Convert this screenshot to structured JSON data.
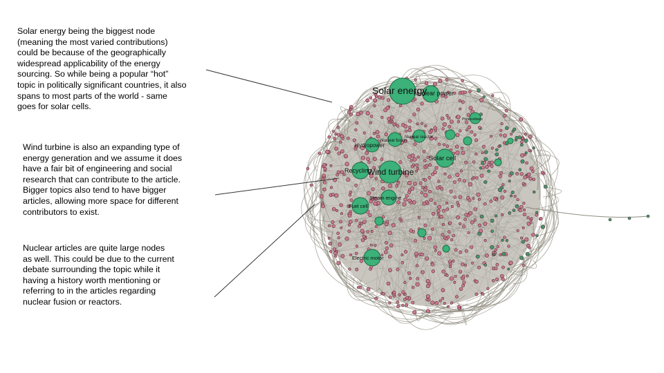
{
  "annotations": {
    "solar": "Solar energy being the biggest node\n(meaning the most varied contributions)\ncould be because of the geographically\nwidespread applicability of the energy\nsourcing. So while being a popular “hot”\ntopic in politically significant countries, it also\nspans to most parts of the world - same\ngoes for solar cells.",
    "wind": "Wind turbine is also an expanding type of\nenergy generation and we assume it does\nhave a fair bit of engineering and social\nresearch that can contribute to the article.\nBigger topics also tend to have bigger\narticles, allowing more space for different\ncontributors to exist.",
    "nuclear": "Nuclear articles are quite large nodes\nas well. This could be due to the current\ndebate surrounding the topic while it\nhaving a history worth mentioning or\nreferring to in the articles regarding\nnuclear fusion or reactors."
  },
  "graph": {
    "colors": {
      "edge": "#8f8b7e",
      "edge_fill": "#9b978a",
      "small_node": "#c97a8e",
      "small_node_stroke": "#5a2a36",
      "big_node": "#3cb179",
      "big_node_stroke": "#1f6b45",
      "green_small": "#3f9a6a"
    },
    "labels": {
      "solar_energy": "Solar energy",
      "nuclear_power": "Nuclear power",
      "photovoltaics": "Photovoltaics",
      "nuclear_fusion": "Nuclear fusion",
      "nuclear_reactor": "Nuclear reactor",
      "hydropower": "Hydropower",
      "solar_cell": "Solar cell",
      "recycling": "Recycling",
      "wind_turbine": "Wind turbine",
      "steam_engine": "Steam engine",
      "fuel_cell": "Fuel cell",
      "electric_motor": "Electric motor"
    }
  }
}
